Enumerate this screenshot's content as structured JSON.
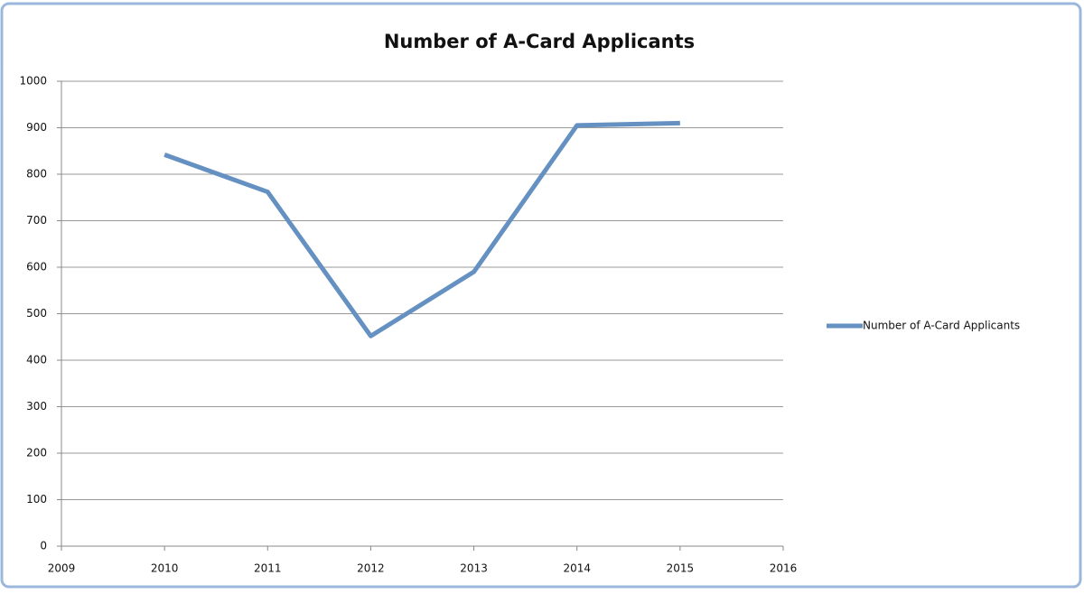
{
  "chart_data": {
    "type": "line",
    "title": "Number of A-Card Applicants",
    "x": [
      2010,
      2011,
      2012,
      2013,
      2014,
      2015
    ],
    "series": [
      {
        "name": "Number of A-Card Applicants",
        "color": "#6591c2",
        "values": [
          842,
          762,
          452,
          590,
          905,
          910
        ]
      }
    ],
    "xlim": [
      2009,
      2016
    ],
    "xticks": [
      2009,
      2010,
      2011,
      2012,
      2013,
      2014,
      2015,
      2016
    ],
    "ylim": [
      0,
      1000
    ],
    "yticks": [
      0,
      100,
      200,
      300,
      400,
      500,
      600,
      700,
      800,
      900,
      1000
    ],
    "grid": true,
    "legend": "right"
  }
}
